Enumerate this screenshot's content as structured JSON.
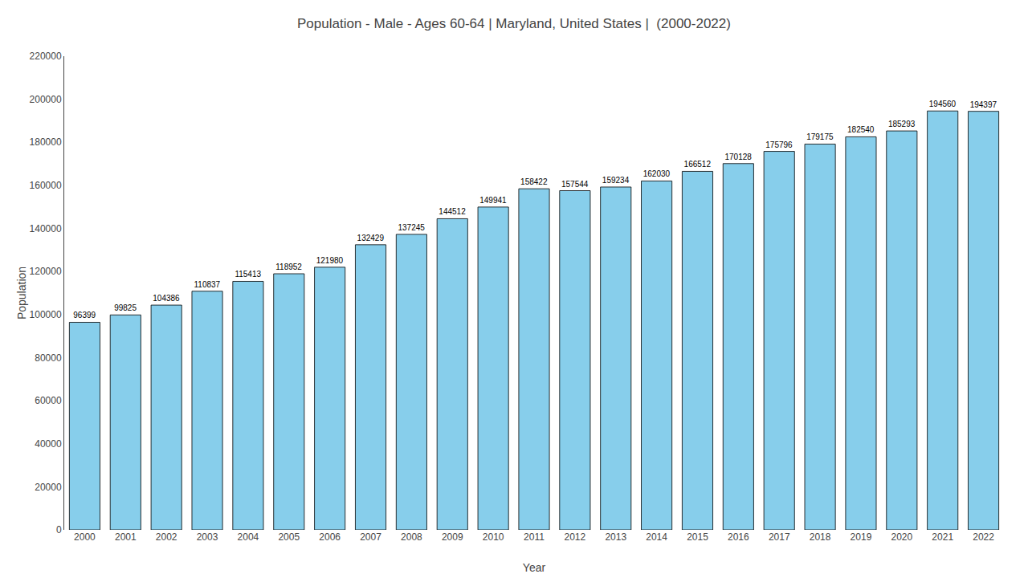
{
  "chart_data": {
    "type": "bar",
    "title": "Population - Male - Ages 60-64 | Maryland, United States |  (2000-2022)",
    "xlabel": "Year",
    "ylabel": "Population",
    "categories": [
      "2000",
      "2001",
      "2002",
      "2003",
      "2004",
      "2005",
      "2006",
      "2007",
      "2008",
      "2009",
      "2010",
      "2011",
      "2012",
      "2013",
      "2014",
      "2015",
      "2016",
      "2017",
      "2018",
      "2019",
      "2020",
      "2021",
      "2022"
    ],
    "values": [
      96399,
      99825,
      104386,
      110837,
      115413,
      118952,
      121980,
      132429,
      137245,
      144512,
      149941,
      158422,
      157544,
      159234,
      162030,
      166512,
      170128,
      175796,
      179175,
      182540,
      185293,
      194560,
      194397
    ],
    "color": "#87CEEB",
    "ylim": [
      0,
      220000
    ],
    "yticks": [
      0,
      20000,
      40000,
      60000,
      80000,
      100000,
      120000,
      140000,
      160000,
      180000,
      200000,
      220000
    ],
    "grid": false,
    "data_labels": true
  }
}
